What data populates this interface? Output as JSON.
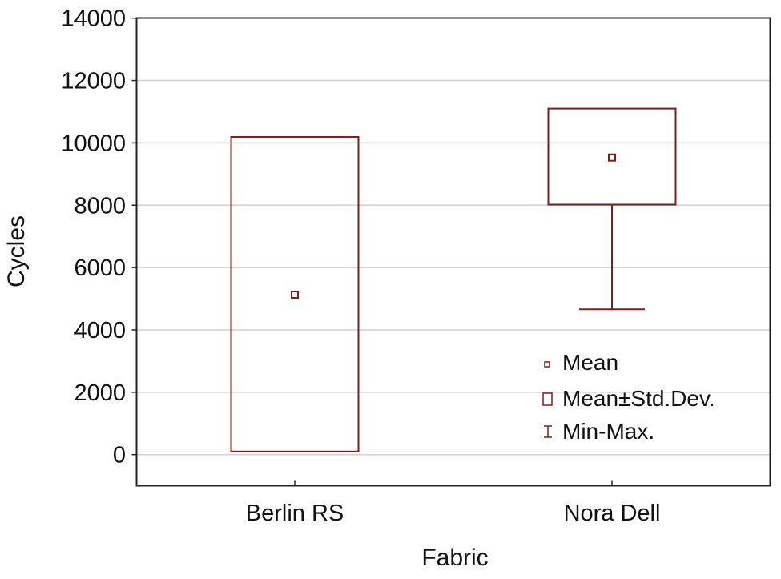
{
  "chart_data": {
    "type": "box",
    "title": "",
    "xlabel": "Fabric",
    "ylabel": "Cycles",
    "ylim": [
      -1000,
      14000
    ],
    "yticks": [
      0,
      2000,
      4000,
      6000,
      8000,
      10000,
      12000,
      14000
    ],
    "grid": true,
    "categories": [
      "Berlin RS",
      "Nora Dell"
    ],
    "series": [
      {
        "name": "Berlin RS",
        "mean": 5130,
        "mean_minus_sd": 100,
        "mean_plus_sd": 10190,
        "min": null,
        "max": null
      },
      {
        "name": "Nora Dell",
        "mean": 9530,
        "mean_minus_sd": 8020,
        "mean_plus_sd": 11100,
        "min": 4660,
        "max": null
      }
    ],
    "legend": {
      "position": "inside-lower-right",
      "entries": [
        "Mean",
        "Mean±Std.Dev.",
        "Min-Max."
      ]
    },
    "colors": {
      "series": "#7b1f1f",
      "grid": "#d0d0d0",
      "axis": "#222222"
    }
  }
}
